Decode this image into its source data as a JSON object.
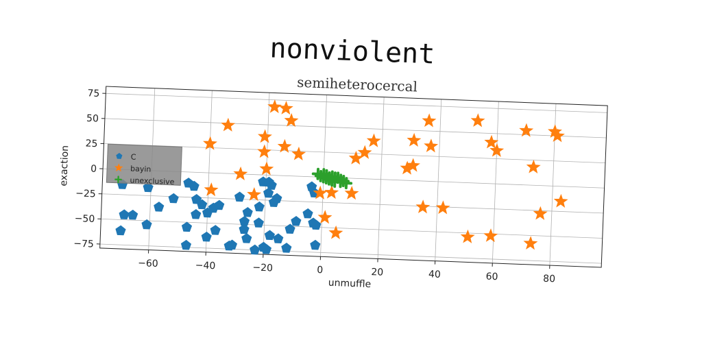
{
  "chart_data": {
    "type": "scatter",
    "suptitle": "nonviolent",
    "title": "semiheterocercal",
    "xlabel": "unmuffle",
    "ylabel": "exaction",
    "xlim": [
      -77,
      98
    ],
    "ylim": [
      -79,
      82
    ],
    "xticks": [
      -60,
      -40,
      -20,
      0,
      20,
      40,
      60,
      80
    ],
    "yticks": [
      -75,
      -50,
      -25,
      0,
      25,
      50,
      75
    ],
    "grid": true,
    "legend_position": "upper-left",
    "series": [
      {
        "name": "C",
        "marker": "pentagon",
        "color": "#1f77b4",
        "points": [
          [
            -70,
            -15
          ],
          [
            -61,
            -17
          ],
          [
            -52,
            -27
          ],
          [
            -47,
            -11
          ],
          [
            -45,
            -14
          ],
          [
            -44,
            -27
          ],
          [
            -42,
            -32
          ],
          [
            -40,
            -40
          ],
          [
            -38,
            -35
          ],
          [
            -36,
            -32
          ],
          [
            -44,
            -42
          ],
          [
            -57,
            -36
          ],
          [
            -66,
            -45
          ],
          [
            -69,
            -45
          ],
          [
            -70,
            -61
          ],
          [
            -61,
            -54
          ],
          [
            -47,
            -55
          ],
          [
            -40,
            -64
          ],
          [
            -37,
            -57
          ],
          [
            -47,
            -73
          ],
          [
            -32,
            -72
          ],
          [
            -31,
            -71
          ],
          [
            -26,
            -64
          ],
          [
            -27,
            -55
          ],
          [
            -22,
            -48
          ],
          [
            -27,
            -47
          ],
          [
            -26,
            -38
          ],
          [
            -22,
            -32
          ],
          [
            -18,
            -60
          ],
          [
            -15,
            -63
          ],
          [
            -11,
            -53
          ],
          [
            -9,
            -45
          ],
          [
            -5,
            -37
          ],
          [
            -3,
            -46
          ],
          [
            -2,
            -48
          ],
          [
            -2,
            -68
          ],
          [
            -12,
            -72
          ],
          [
            -19,
            -74
          ],
          [
            -23,
            -75
          ],
          [
            -20,
            -72
          ],
          [
            -19,
            -18
          ],
          [
            -17,
            -27
          ],
          [
            -16,
            -23
          ],
          [
            -21,
            -7
          ],
          [
            -19,
            -7
          ],
          [
            -18,
            -10
          ],
          [
            -4,
            -10
          ],
          [
            -3,
            -16
          ],
          [
            -29,
            -23
          ]
        ]
      },
      {
        "name": "bayin",
        "marker": "star",
        "color": "#ff7f0e",
        "points": [
          [
            -18,
            68
          ],
          [
            -14,
            67
          ],
          [
            -12,
            55
          ],
          [
            -34,
            48
          ],
          [
            -21,
            38
          ],
          [
            -14,
            29
          ],
          [
            -9,
            22
          ],
          [
            -21,
            23
          ],
          [
            -40,
            29
          ],
          [
            -20,
            6
          ],
          [
            -29,
            0
          ],
          [
            -39,
            -17
          ],
          [
            -24,
            -20
          ],
          [
            -1,
            -16
          ],
          [
            3,
            -15
          ],
          [
            10,
            -15
          ],
          [
            1,
            -40
          ],
          [
            5,
            -55
          ],
          [
            11,
            20
          ],
          [
            14,
            26
          ],
          [
            17,
            38
          ],
          [
            29,
            12
          ],
          [
            31,
            15
          ],
          [
            31,
            40
          ],
          [
            35,
            -26
          ],
          [
            36,
            60
          ],
          [
            37,
            35
          ],
          [
            42,
            -26
          ],
          [
            53,
            62
          ],
          [
            58,
            41
          ],
          [
            60,
            33
          ],
          [
            70,
            54
          ],
          [
            73,
            18
          ],
          [
            76,
            -28
          ],
          [
            80,
            54
          ],
          [
            81,
            50
          ],
          [
            83,
            -15
          ],
          [
            51,
            -54
          ],
          [
            59,
            -52
          ],
          [
            73,
            -58
          ]
        ]
      },
      {
        "name": "unexclusive",
        "marker": "plus",
        "color": "#2ca02c",
        "points": [
          [
            -2,
            3
          ],
          [
            0,
            3
          ],
          [
            1,
            2
          ],
          [
            3,
            1
          ],
          [
            4,
            0
          ],
          [
            6,
            -2
          ],
          [
            2,
            0
          ],
          [
            -1,
            1
          ],
          [
            0,
            0
          ],
          [
            3,
            -1
          ],
          [
            5,
            0
          ],
          [
            7,
            -3
          ],
          [
            8,
            -5
          ],
          [
            4,
            -4
          ],
          [
            1,
            -1
          ],
          [
            2,
            -2
          ],
          [
            3,
            -3
          ],
          [
            6,
            -4
          ]
        ]
      }
    ]
  }
}
